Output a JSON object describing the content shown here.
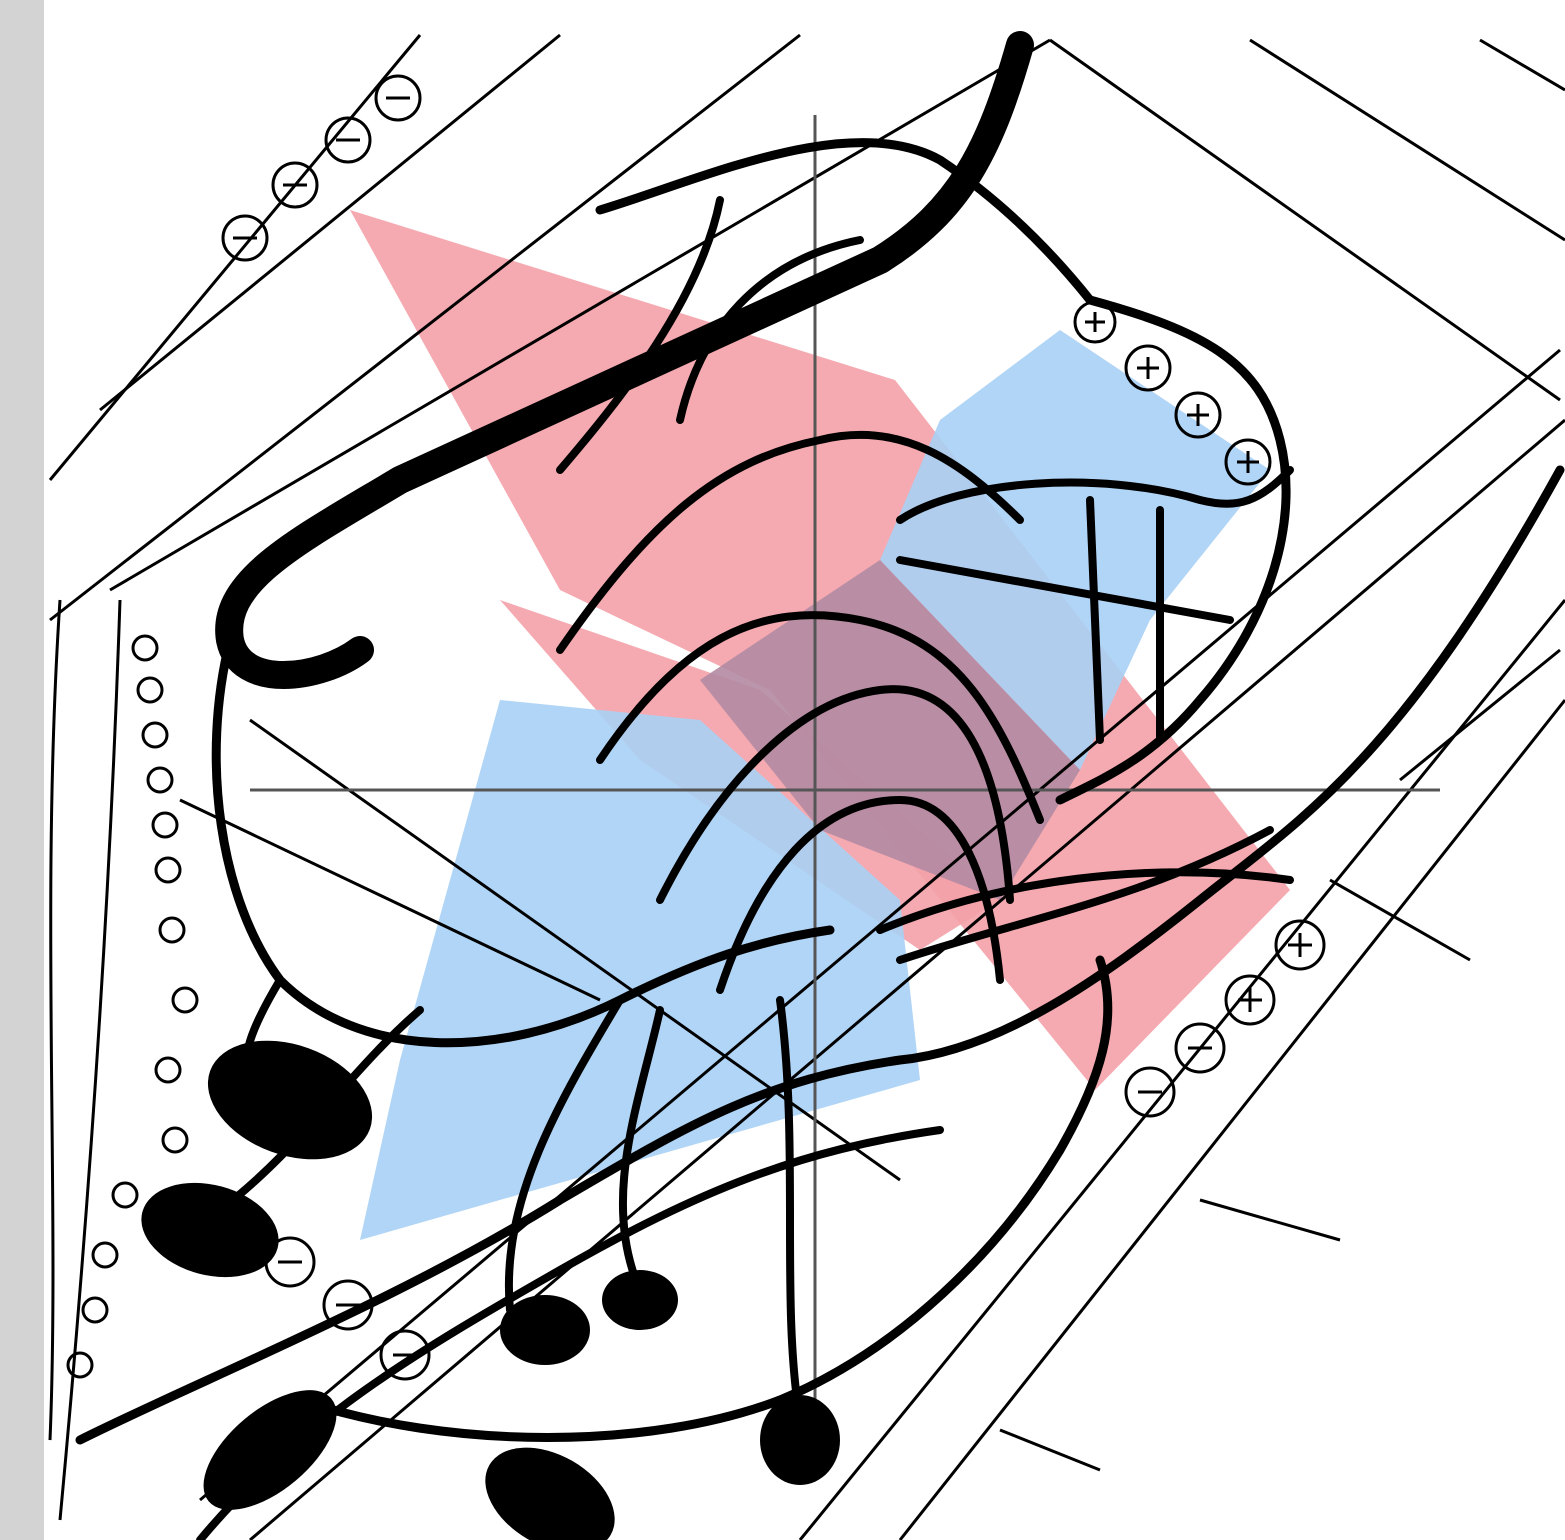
{
  "colors": {
    "background": "#ffffff",
    "side_strip": "#d3d3d3",
    "zone_pink": "#f4a1a8",
    "zone_blue": "#a8d0f5",
    "zone_overlap": "#b38aa2",
    "ink": "#000000",
    "axis": "#555555"
  },
  "icons": {
    "plus_marker": "plus-circle-icon",
    "minus_marker": "minus-circle-icon",
    "small_marker": "small-circle-icon"
  },
  "zones": [
    {
      "name": "zone-pink",
      "color_key": "zone_pink"
    },
    {
      "name": "zone-blue",
      "color_key": "zone_blue"
    }
  ]
}
